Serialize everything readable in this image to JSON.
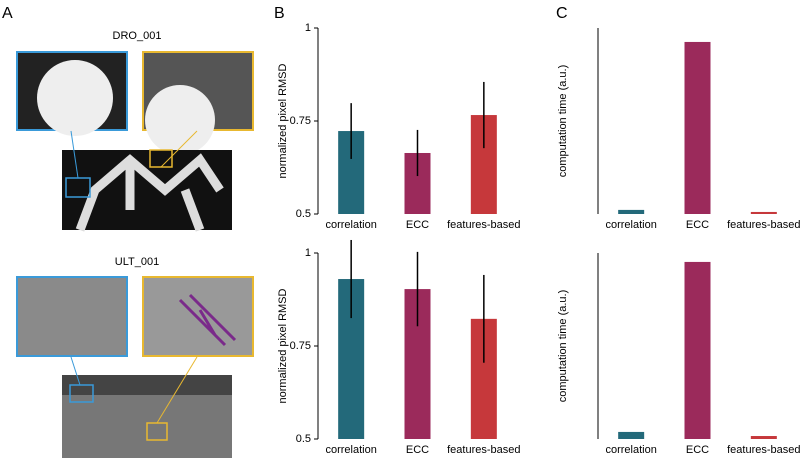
{
  "panel_labels": [
    "A",
    "B",
    "C"
  ],
  "image_labels": [
    "DRO_001",
    "ULT_001"
  ],
  "chart_data": [
    {
      "type": "bar",
      "y_label": "normalized pixel RMSD",
      "categories": [
        "correlation",
        "ECC",
        "features-based"
      ],
      "values": [
        0.723,
        0.664,
        0.766
      ],
      "errors": [
        0.075,
        0.062,
        0.089
      ],
      "colors": [
        "#23697a",
        "#9b2a5b",
        "#c6383b"
      ],
      "ylim": [
        0.5,
        1
      ],
      "yticks": [
        0.5,
        0.75,
        1
      ]
    },
    {
      "type": "bar",
      "y_label": "computation time (a.u.)",
      "categories": [
        "correlation",
        "ECC",
        "features-based"
      ],
      "values": [
        0.022,
        0.925,
        0.011
      ],
      "colors": [
        "#23697a",
        "#9b2a5b",
        "#c6383b"
      ],
      "ylim": [
        0,
        1
      ]
    },
    {
      "type": "bar",
      "y_label": "normalized pixel RMSD",
      "categories": [
        "correlation",
        "ECC",
        "features-based"
      ],
      "values": [
        0.93,
        0.903,
        0.823
      ],
      "errors": [
        0.105,
        0.1,
        0.118
      ],
      "colors": [
        "#23697a",
        "#9b2a5b",
        "#c6383b"
      ],
      "ylim": [
        0.5,
        1
      ],
      "yticks": [
        0.5,
        0.75,
        1
      ]
    },
    {
      "type": "bar",
      "y_label": "computation time (a.u.)",
      "categories": [
        "correlation",
        "ECC",
        "features-based"
      ],
      "values": [
        0.038,
        0.952,
        0.016
      ],
      "colors": [
        "#23697a",
        "#9b2a5b",
        "#c6383b"
      ],
      "ylim": [
        0,
        1
      ]
    }
  ]
}
